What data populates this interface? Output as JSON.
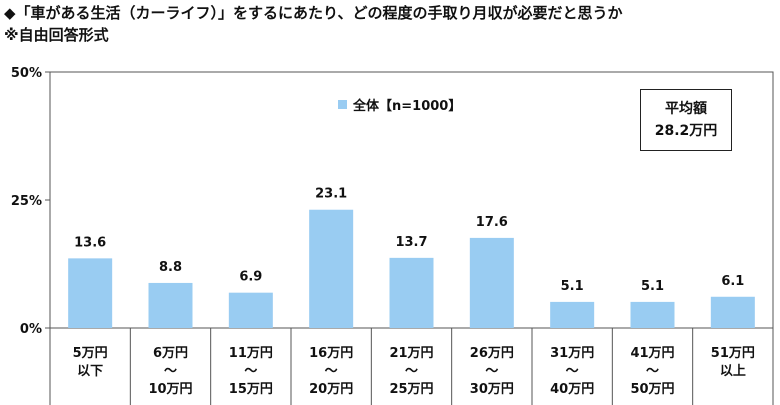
{
  "title_lines": [
    "◆「車がある生活（カーライフ）」をするにあたり、どの程度の手取り月収が必要だと思うか",
    "※自由回答形式"
  ],
  "summary_box": {
    "label": "平均額",
    "value": "28.2万円"
  },
  "chart_data": {
    "type": "bar",
    "title": "",
    "categories": [
      "5万円\n以下",
      "6万円\n～\n10万円",
      "11万円\n～\n15万円",
      "16万円\n～\n20万円",
      "21万円\n～\n25万円",
      "26万円\n～\n30万円",
      "31万円\n～\n40万円",
      "41万円\n～\n50万円",
      "51万円\n以上"
    ],
    "series": [
      {
        "name": "全体【n=1000】",
        "values": [
          13.6,
          8.8,
          6.9,
          23.1,
          13.7,
          17.6,
          5.1,
          5.1,
          6.1
        ],
        "color": "#99ccf2"
      }
    ],
    "ylim": [
      0,
      50
    ],
    "yticks": [
      "0%",
      "25%",
      "50%"
    ],
    "ytick_values": [
      0,
      25,
      50
    ],
    "grid": false,
    "legend_position": "top-center",
    "data_labels": [
      "13.6",
      "8.8",
      "6.9",
      "23.1",
      "13.7",
      "17.6",
      "5.1",
      "5.1",
      "6.1"
    ]
  }
}
